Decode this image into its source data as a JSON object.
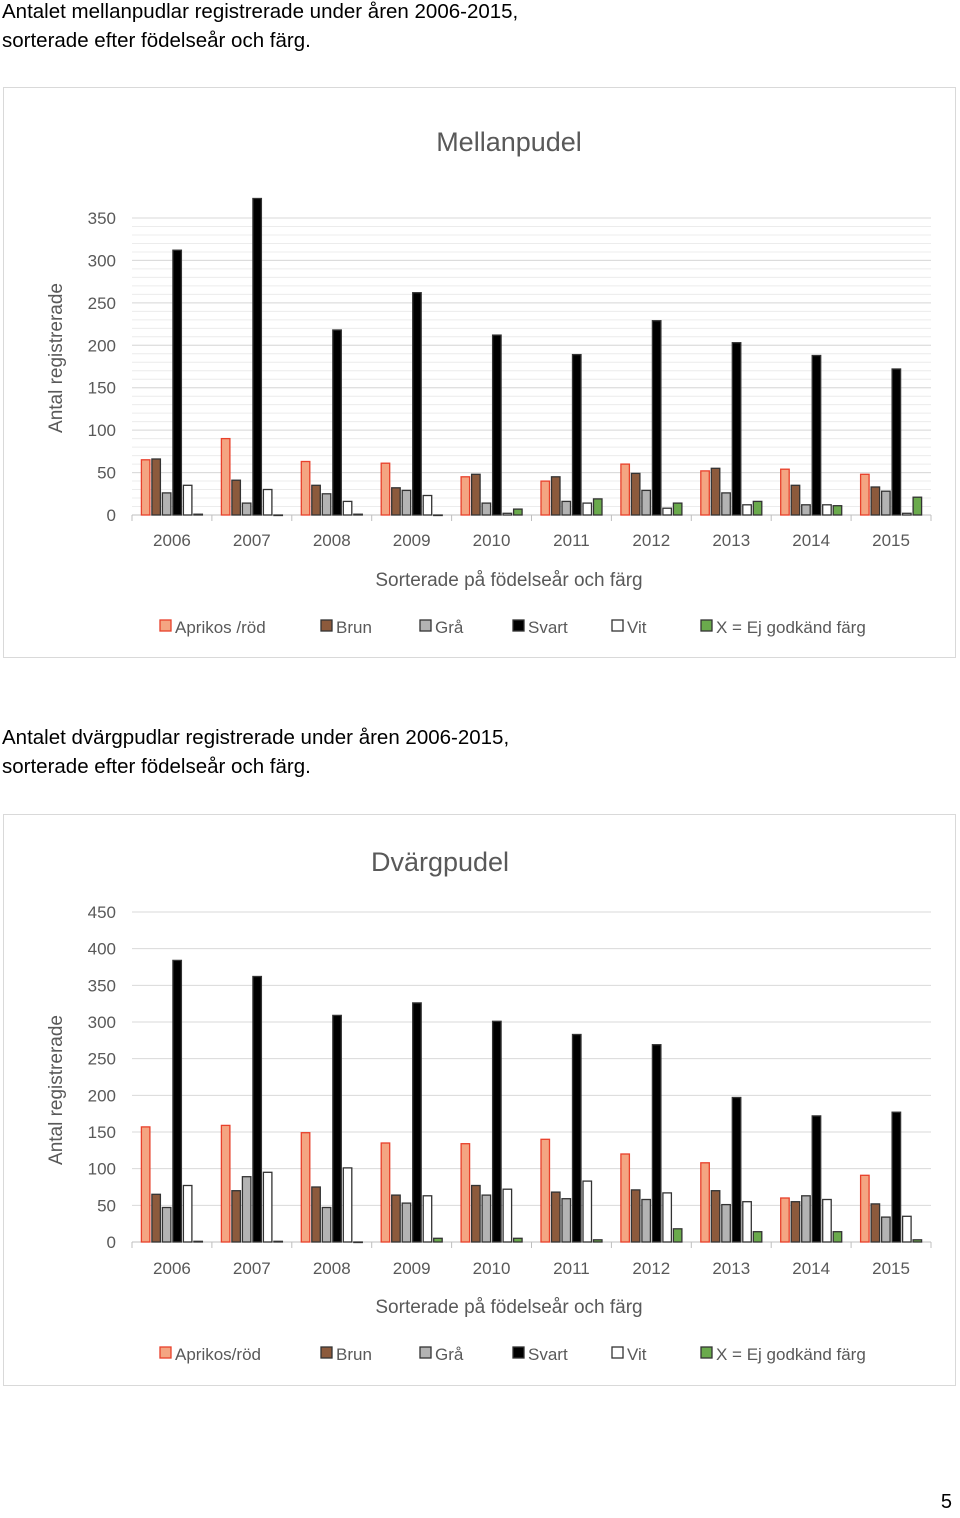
{
  "captions": [
    {
      "line1": "Antalet mellanpudlar registrerade under åren 2006-2015,",
      "line2": "sorterade efter födelseår och färg."
    },
    {
      "line1": "Antalet dvärgpudlar registrerade under åren 2006-2015,",
      "line2": "sorterade efter födelseår och färg."
    }
  ],
  "page_number": "5",
  "colors": {
    "Aprikos": "#f4a582",
    "Aprikos_edge": "#e8402b",
    "Brun": "#8c5a3c",
    "Grå": "#b3b3b3",
    "Svart": "#000000",
    "Vit": "#ffffff",
    "X": "#6aaa4c"
  },
  "chart_data": [
    {
      "type": "bar",
      "title": "Mellanpudel",
      "xlabel": "Sorterade på födelseår och färg",
      "ylabel": "Antal registrerade",
      "ylim": [
        0,
        350
      ],
      "yticks": [
        0,
        50,
        100,
        150,
        200,
        250,
        300,
        350
      ],
      "grid": true,
      "legend_position": "bottom",
      "categories": [
        "2006",
        "2007",
        "2008",
        "2009",
        "2010",
        "2011",
        "2012",
        "2013",
        "2014",
        "2015"
      ],
      "series": [
        {
          "name": "Aprikos /röd",
          "key": "Aprikos",
          "values": [
            65,
            90,
            63,
            61,
            45,
            40,
            60,
            52,
            54,
            48
          ]
        },
        {
          "name": "Brun",
          "key": "Brun",
          "values": [
            66,
            41,
            35,
            32,
            48,
            45,
            49,
            55,
            35,
            33
          ]
        },
        {
          "name": "Grå",
          "key": "Grå",
          "values": [
            26,
            14,
            25,
            29,
            14,
            16,
            29,
            26,
            12,
            28
          ]
        },
        {
          "name": "Svart",
          "key": "Svart",
          "values": [
            312,
            373,
            218,
            262,
            212,
            189,
            229,
            203,
            188,
            172
          ]
        },
        {
          "name": "Vit",
          "key": "Vit",
          "values": [
            35,
            30,
            16,
            23,
            2,
            14,
            8,
            12,
            12,
            2
          ]
        },
        {
          "name": "X = Ej godkänd färg",
          "key": "X",
          "values": [
            1,
            0,
            1,
            0,
            7,
            19,
            14,
            16,
            11,
            21
          ]
        }
      ]
    },
    {
      "type": "bar",
      "title": "Dvärgpudel",
      "xlabel": "Sorterade på födelseår och färg",
      "ylabel": "Antal registrerade",
      "ylim": [
        0,
        450
      ],
      "yticks": [
        0,
        50,
        100,
        150,
        200,
        250,
        300,
        350,
        400,
        450
      ],
      "grid": true,
      "legend_position": "bottom",
      "categories": [
        "2006",
        "2007",
        "2008",
        "2009",
        "2010",
        "2011",
        "2012",
        "2013",
        "2014",
        "2015"
      ],
      "series": [
        {
          "name": "Aprikos/röd",
          "key": "Aprikos",
          "values": [
            157,
            159,
            149,
            135,
            134,
            140,
            120,
            108,
            60,
            91
          ]
        },
        {
          "name": "Brun",
          "key": "Brun",
          "values": [
            65,
            70,
            75,
            64,
            77,
            68,
            71,
            70,
            55,
            52
          ]
        },
        {
          "name": "Grå",
          "key": "Grå",
          "values": [
            47,
            89,
            47,
            53,
            64,
            59,
            58,
            51,
            63,
            34
          ]
        },
        {
          "name": "Svart",
          "key": "Svart",
          "values": [
            384,
            362,
            309,
            326,
            301,
            283,
            269,
            197,
            172,
            177
          ]
        },
        {
          "name": "Vit",
          "key": "Vit",
          "values": [
            77,
            95,
            101,
            63,
            72,
            83,
            67,
            55,
            58,
            35
          ]
        },
        {
          "name": "X = Ej godkänd färg",
          "key": "X",
          "values": [
            1,
            1,
            0,
            5,
            5,
            3,
            18,
            14,
            14,
            3
          ]
        }
      ]
    }
  ]
}
